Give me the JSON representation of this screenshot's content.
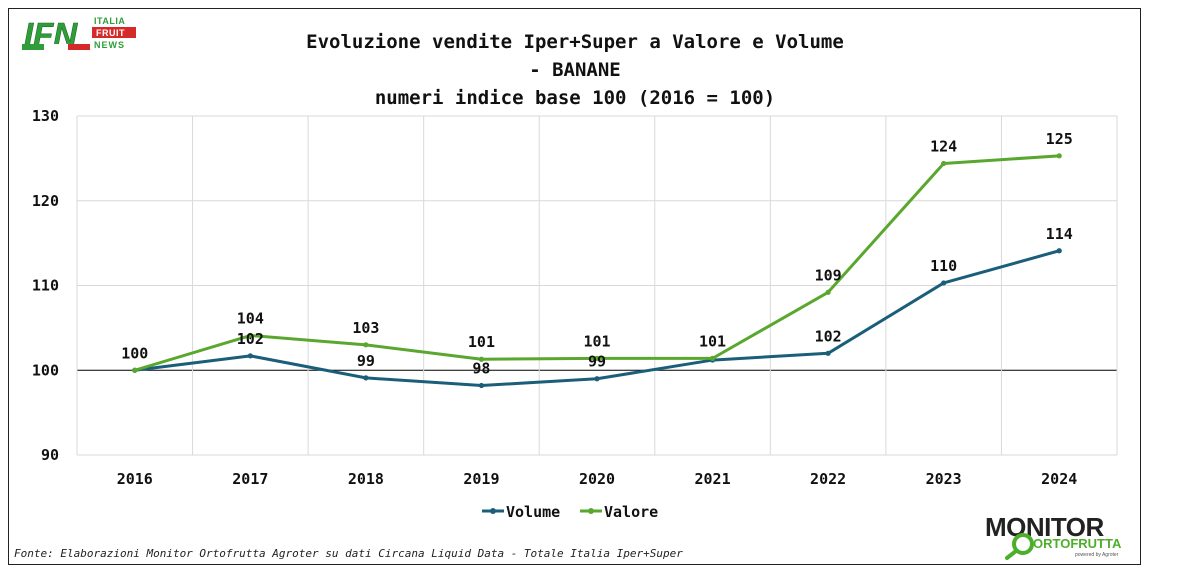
{
  "brand": {
    "ifn_letters": "IFN",
    "ifn_words": [
      "ITALIA",
      "FRUIT",
      "NEWS"
    ],
    "monitor_word": "MONITOR",
    "monitor_sub": "ORTOFRUTTA",
    "monitor_powered": "powered by Agroter"
  },
  "title_lines": [
    "Evoluzione vendite Iper+Super a Valore e Volume",
    "- BANANE",
    "numeri indice base 100 (2016 = 100)"
  ],
  "source": "Fonte: Elaborazioni Monitor Ortofrutta Agroter su dati Circana Liquid Data - Totale Italia Iper+Super",
  "colors": {
    "volume": "#1b5e7a",
    "valore": "#5aa72f",
    "grid": "#d9d9d9",
    "baseline": "#000000"
  },
  "chart_data": {
    "type": "line",
    "title": "Evoluzione vendite Iper+Super a Valore e Volume - BANANE numeri indice base 100 (2016 = 100)",
    "xlabel": "",
    "ylabel": "",
    "ylim": [
      90,
      130
    ],
    "yticks": [
      "90",
      "100",
      "110",
      "120",
      "130"
    ],
    "grid": true,
    "legend": "bottom-center",
    "categories": [
      "2016",
      "2017",
      "2018",
      "2019",
      "2020",
      "2021",
      "2022",
      "2023",
      "2024"
    ],
    "series": [
      {
        "name": "Volume",
        "values": [
          100,
          101.7,
          99.1,
          98.2,
          99.0,
          101.2,
          102.0,
          110.3,
          114.1
        ],
        "labels": [
          "",
          "102",
          "99",
          "98",
          "99",
          "",
          "102",
          "110",
          "114"
        ]
      },
      {
        "name": "Valore",
        "values": [
          100,
          104.1,
          103.0,
          101.3,
          101.4,
          101.4,
          109.2,
          124.4,
          125.3
        ],
        "labels": [
          "100",
          "104",
          "103",
          "101",
          "101",
          "101",
          "109",
          "124",
          "125"
        ]
      }
    ]
  }
}
